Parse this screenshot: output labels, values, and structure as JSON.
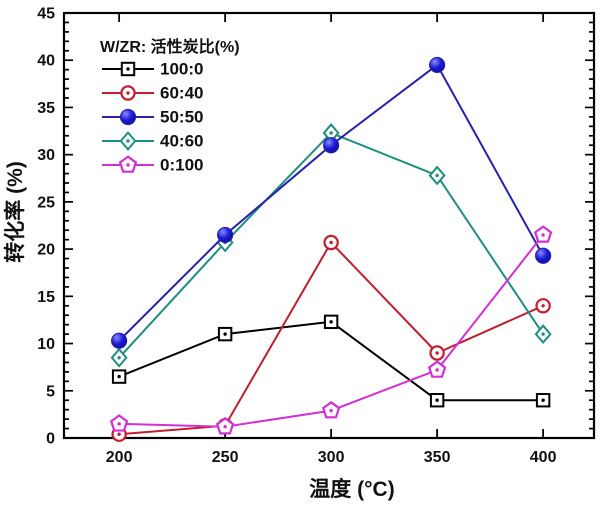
{
  "chart_data": {
    "type": "line",
    "title": "",
    "xlabel": "温度  (°C)",
    "ylabel": "转化率 (%)",
    "legend_title": "W/ZR: 活性炭比(%)",
    "legend_position": "top-left-inside",
    "grid": false,
    "xlim": [
      174,
      424
    ],
    "ylim": [
      0,
      45
    ],
    "x_ticks": [
      200,
      250,
      300,
      350,
      400
    ],
    "y_ticks": [
      0,
      5,
      10,
      15,
      20,
      25,
      30,
      35,
      40,
      45
    ],
    "y_minor_step": 1,
    "x": [
      200,
      250,
      300,
      350,
      400
    ],
    "series": [
      {
        "name": "100:0",
        "color": "#000000",
        "marker": "square-open-dot",
        "values": [
          6.5,
          11,
          12.3,
          4,
          4
        ]
      },
      {
        "name": "60:40",
        "color": "#bf1f2e",
        "marker": "circle-open-dot",
        "values": [
          0.4,
          1.3,
          20.7,
          9,
          14
        ]
      },
      {
        "name": "50:50",
        "color": "#2822aa",
        "marker": "circle-filled",
        "marker_fill": "#1b1bd6",
        "marker_highlight": "#8a8aff",
        "values": [
          10.3,
          21.5,
          31,
          39.5,
          19.3
        ]
      },
      {
        "name": "40:60",
        "color": "#1e8e7e",
        "marker": "diamond-open-dot",
        "values": [
          8.5,
          20.7,
          32.3,
          27.8,
          11
        ]
      },
      {
        "name": "0:100",
        "color": "#d32fd3",
        "marker": "pentagon-open-dot",
        "values": [
          1.5,
          1.2,
          2.9,
          7.2,
          21.5
        ]
      }
    ],
    "axis_color": "#000000",
    "background": "#ffffff"
  }
}
